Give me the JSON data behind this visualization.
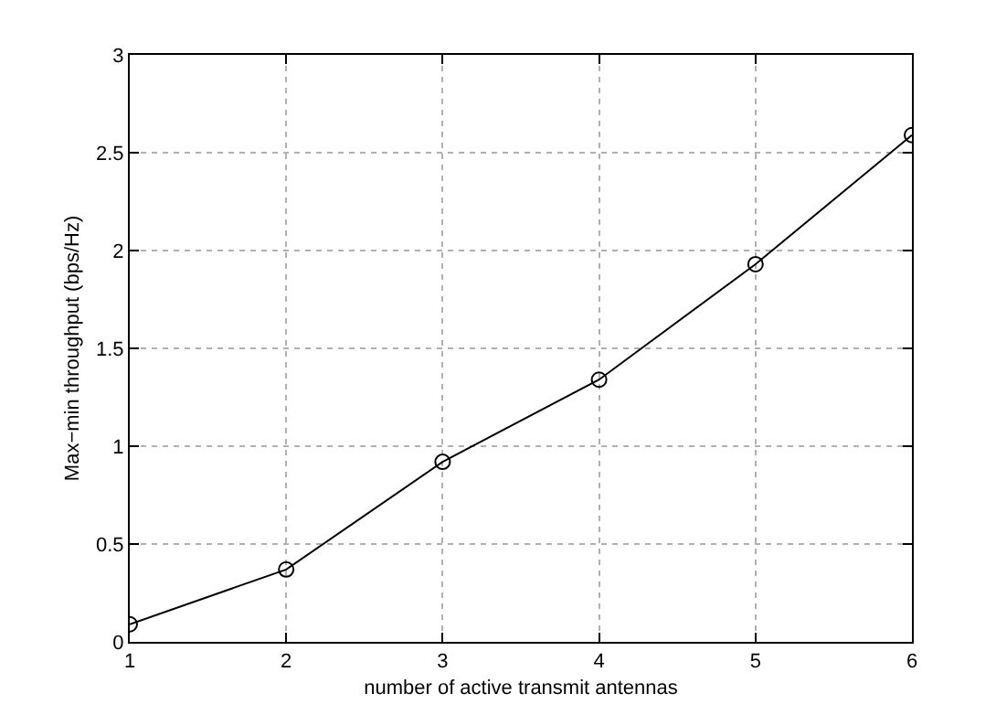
{
  "chart_data": {
    "type": "line",
    "xlabel": "number of active transmit antennas",
    "ylabel": "Max−min throughput (bps/Hz)",
    "x": [
      1,
      2,
      3,
      4,
      5,
      6
    ],
    "series": [
      {
        "color": "#000000",
        "values": [
          0.09,
          0.37,
          0.92,
          1.34,
          1.93,
          2.59
        ]
      }
    ],
    "xlim": [
      1,
      6
    ],
    "xticks": [
      1,
      2,
      3,
      4,
      5,
      6
    ],
    "ylim": [
      0,
      3
    ],
    "yticks": [
      0,
      0.5,
      1,
      1.5,
      2,
      2.5,
      3
    ],
    "grid": true,
    "marker": "circle",
    "line_style": "solid"
  }
}
